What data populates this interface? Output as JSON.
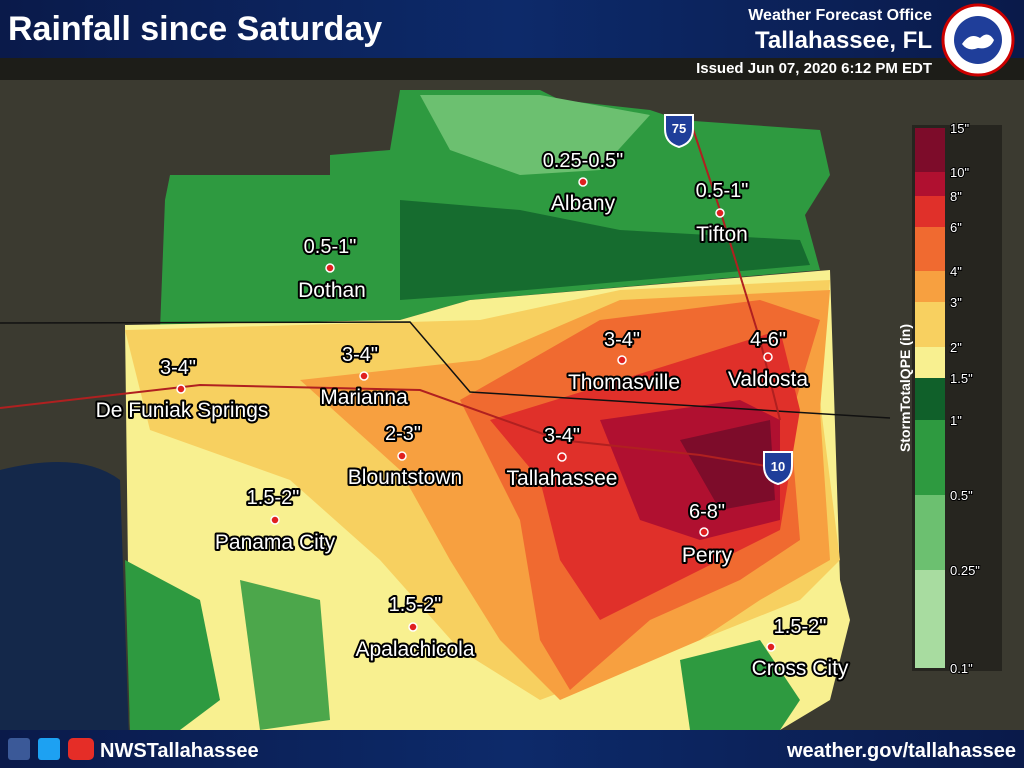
{
  "header": {
    "title": "Rainfall since Saturday",
    "office": "Weather Forecast Office",
    "location": "Tallahassee, FL",
    "issued": "Issued Jun 07, 2020 6:12 PM EDT"
  },
  "map": {
    "places": [
      {
        "name": "Albany",
        "amount": "0.25-0.5\""
      },
      {
        "name": "Tifton",
        "amount": "0.5-1\""
      },
      {
        "name": "Dothan",
        "amount": "0.5-1\""
      },
      {
        "name": "De Funiak Springs",
        "amount": "3-4\""
      },
      {
        "name": "Marianna",
        "amount": "3-4\""
      },
      {
        "name": "Thomasville",
        "amount": "3-4\""
      },
      {
        "name": "Valdosta",
        "amount": "4-6\""
      },
      {
        "name": "Blountstown",
        "amount": "2-3\""
      },
      {
        "name": "Tallahassee",
        "amount": "3-4\""
      },
      {
        "name": "Panama City",
        "amount": "1.5-2\""
      },
      {
        "name": "Perry",
        "amount": "6-8\""
      },
      {
        "name": "Apalachicola",
        "amount": "1.5-2\""
      },
      {
        "name": "Cross City",
        "amount": "1.5-2\""
      }
    ]
  },
  "legend": {
    "title": "StormTotalQPE (in)",
    "ticks": [
      "15\"",
      "10\"",
      "8\"",
      "6\"",
      "4\"",
      "3\"",
      "2\"",
      "1.5\"",
      "1\"",
      "0.5\"",
      "0.25\"",
      "0.1\""
    ]
  },
  "footer": {
    "handle": "NWSTallahassee",
    "url": "weather.gov/tallahassee"
  }
}
